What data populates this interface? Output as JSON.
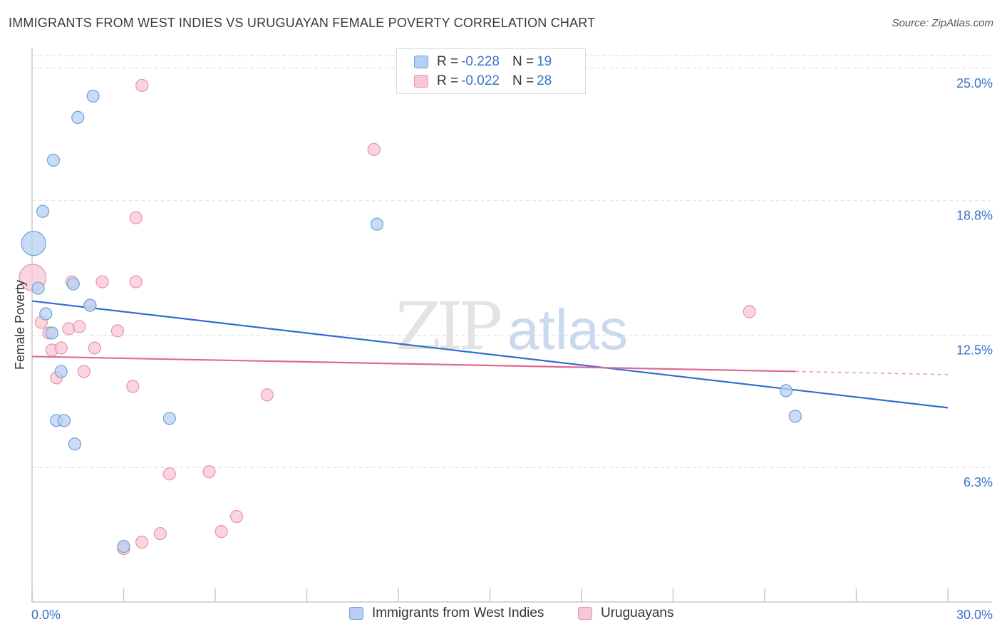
{
  "title": "IMMIGRANTS FROM WEST INDIES VS URUGUAYAN FEMALE POVERTY CORRELATION CHART",
  "source": "Source: ZipAtlas.com",
  "watermark": {
    "zip": "ZIP",
    "atlas": "atlas"
  },
  "colors": {
    "blue_fill": "#b7d0f2",
    "blue_stroke": "#6e9fdc",
    "blue_line": "#2f6fcf",
    "pink_fill": "#f8c7d5",
    "pink_stroke": "#e892ac",
    "pink_line": "#e0679a",
    "tick_label": "#3a72c8",
    "grid": "#dddddd"
  },
  "legend_top": {
    "rows": [
      {
        "r_label": "R = ",
        "r_value": "-0.228",
        "n_label": "N = ",
        "n_value": "19"
      },
      {
        "r_label": "R = ",
        "r_value": "-0.022",
        "n_label": "N = ",
        "n_value": "28"
      }
    ]
  },
  "legend_bottom": [
    "Immigrants from West Indies",
    "Uruguayans"
  ],
  "chart_data": {
    "type": "scatter",
    "title": "IMMIGRANTS FROM WEST INDIES VS URUGUAYAN FEMALE POVERTY CORRELATION CHART",
    "xlabel": "",
    "ylabel": "Female Poverty",
    "xlim": [
      0,
      30
    ],
    "ylim": [
      0,
      25.6
    ],
    "x_tick_labels": [
      "0.0%",
      "30.0%"
    ],
    "y_ticks": [
      6.3,
      12.5,
      18.8,
      25.0
    ],
    "y_tick_labels": [
      "6.3%",
      "12.5%",
      "18.8%",
      "25.0%"
    ],
    "grid": true,
    "series": [
      {
        "name": "Immigrants from West Indies",
        "color": "#6e9fdc",
        "points": [
          {
            "x": 2.0,
            "y": 23.7,
            "size": 1
          },
          {
            "x": 1.5,
            "y": 22.7,
            "size": 1
          },
          {
            "x": 0.7,
            "y": 20.7,
            "size": 1
          },
          {
            "x": 0.35,
            "y": 18.3,
            "size": 1
          },
          {
            "x": 0.05,
            "y": 16.8,
            "size": 2
          },
          {
            "x": 0.2,
            "y": 14.7,
            "size": 1
          },
          {
            "x": 1.35,
            "y": 14.9,
            "size": 1
          },
          {
            "x": 1.9,
            "y": 13.9,
            "size": 1
          },
          {
            "x": 0.45,
            "y": 13.5,
            "size": 1
          },
          {
            "x": 0.65,
            "y": 12.6,
            "size": 1
          },
          {
            "x": 0.95,
            "y": 10.8,
            "size": 1
          },
          {
            "x": 0.8,
            "y": 8.5,
            "size": 1
          },
          {
            "x": 1.05,
            "y": 8.5,
            "size": 1
          },
          {
            "x": 4.5,
            "y": 8.6,
            "size": 1
          },
          {
            "x": 1.4,
            "y": 7.4,
            "size": 1
          },
          {
            "x": 3.0,
            "y": 2.6,
            "size": 1
          },
          {
            "x": 11.3,
            "y": 17.7,
            "size": 1
          },
          {
            "x": 24.7,
            "y": 9.9,
            "size": 1
          },
          {
            "x": 25.0,
            "y": 8.7,
            "size": 1
          }
        ],
        "trend": {
          "x0": 0,
          "y0": 14.1,
          "x1": 30,
          "y1": 9.1
        }
      },
      {
        "name": "Uruguayans",
        "color": "#e892ac",
        "points": [
          {
            "x": 3.6,
            "y": 24.2,
            "size": 1
          },
          {
            "x": 11.2,
            "y": 21.2,
            "size": 1
          },
          {
            "x": 3.4,
            "y": 18.0,
            "size": 1
          },
          {
            "x": 0.02,
            "y": 15.2,
            "size": 2.2
          },
          {
            "x": 1.3,
            "y": 15.0,
            "size": 1
          },
          {
            "x": 2.3,
            "y": 15.0,
            "size": 1
          },
          {
            "x": 3.4,
            "y": 15.0,
            "size": 1
          },
          {
            "x": 1.9,
            "y": 13.9,
            "size": 1
          },
          {
            "x": 0.3,
            "y": 13.1,
            "size": 1
          },
          {
            "x": 0.55,
            "y": 12.6,
            "size": 1
          },
          {
            "x": 1.2,
            "y": 12.8,
            "size": 1
          },
          {
            "x": 1.55,
            "y": 12.9,
            "size": 1
          },
          {
            "x": 2.8,
            "y": 12.7,
            "size": 1
          },
          {
            "x": 0.65,
            "y": 11.8,
            "size": 1
          },
          {
            "x": 0.95,
            "y": 11.9,
            "size": 1
          },
          {
            "x": 2.05,
            "y": 11.9,
            "size": 1
          },
          {
            "x": 1.7,
            "y": 10.8,
            "size": 1
          },
          {
            "x": 0.8,
            "y": 10.5,
            "size": 1
          },
          {
            "x": 3.3,
            "y": 10.1,
            "size": 1
          },
          {
            "x": 7.7,
            "y": 9.7,
            "size": 1
          },
          {
            "x": 4.5,
            "y": 6.0,
            "size": 1
          },
          {
            "x": 5.8,
            "y": 6.1,
            "size": 1
          },
          {
            "x": 6.7,
            "y": 4.0,
            "size": 1
          },
          {
            "x": 6.2,
            "y": 3.3,
            "size": 1
          },
          {
            "x": 4.2,
            "y": 3.2,
            "size": 1
          },
          {
            "x": 3.6,
            "y": 2.8,
            "size": 1
          },
          {
            "x": 3.0,
            "y": 2.5,
            "size": 1
          },
          {
            "x": 23.5,
            "y": 13.6,
            "size": 1
          }
        ],
        "trend": {
          "x0": 0,
          "y0": 11.5,
          "x1": 25.0,
          "y1": 10.8,
          "dash_to_x": 30,
          "dash_to_y": 10.65
        }
      }
    ]
  }
}
